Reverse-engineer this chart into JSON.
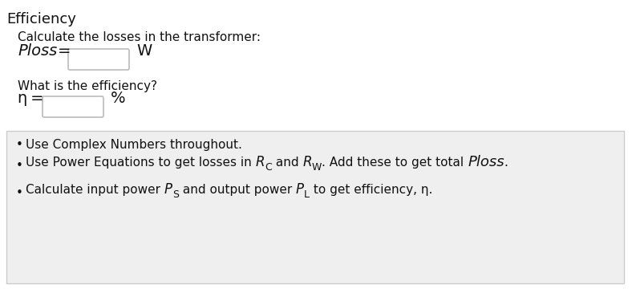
{
  "title": "Efficiency",
  "line1": "Calculate the losses in the transformer:",
  "ploss_label": "Ploss",
  "ploss_unit": "W",
  "efficiency_question": "What is the efficiency?",
  "eta_unit": "%",
  "bullet1": "Use Complex Numbers throughout.",
  "bg_color": "#ffffff",
  "box_bg_color": "#efefef",
  "box_border_color": "#cccccc",
  "title_fontsize": 13,
  "body_fontsize": 11,
  "ploss_fontsize": 14,
  "input_box_color": "#ffffff",
  "input_box_edge_color": "#bbbbbb",
  "text_color": "#111111"
}
